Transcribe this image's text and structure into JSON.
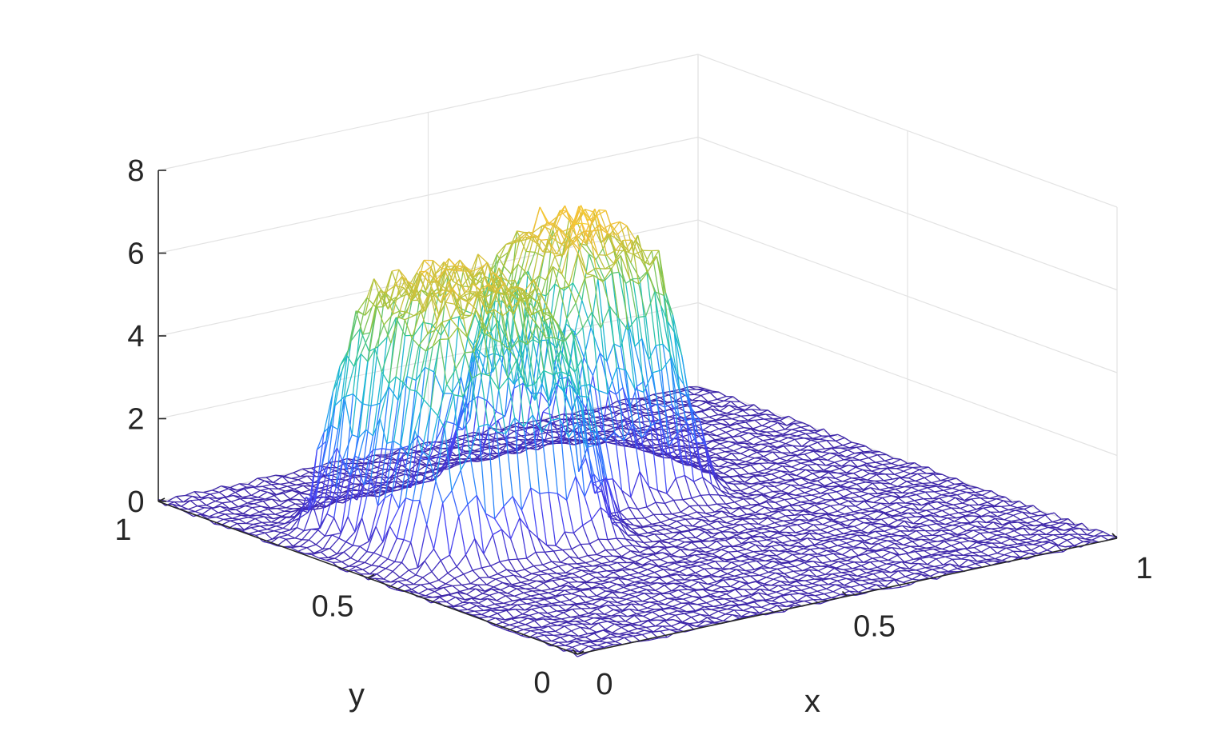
{
  "chart_data": {
    "type": "surface-mesh",
    "title": "",
    "xlabel": "x",
    "ylabel": "y",
    "zlabel": "",
    "xlim": [
      0,
      1
    ],
    "ylim": [
      0,
      1
    ],
    "zlim": [
      0,
      8
    ],
    "x_ticks": [
      {
        "value": 0,
        "label": "0"
      },
      {
        "value": 0.5,
        "label": "0.5"
      },
      {
        "value": 1,
        "label": "1"
      }
    ],
    "y_ticks": [
      {
        "value": 0,
        "label": "0"
      },
      {
        "value": 0.5,
        "label": "0.5"
      },
      {
        "value": 1,
        "label": "1"
      }
    ],
    "z_ticks": [
      {
        "value": 0,
        "label": "0"
      },
      {
        "value": 2,
        "label": "2"
      },
      {
        "value": 4,
        "label": "4"
      },
      {
        "value": 6,
        "label": "6"
      },
      {
        "value": 8,
        "label": "8"
      }
    ],
    "grid": true,
    "colormap": [
      "#3e26a8",
      "#4743f6",
      "#2c7eff",
      "#1ab2e2",
      "#2ec6a0",
      "#95c442",
      "#f4c138",
      "#f9fb15"
    ],
    "surface": {
      "description_values": "noisy near-zero background with a raised plateau",
      "background_level": 0,
      "plateau_regions": [
        {
          "x_range": [
            0.1,
            0.4
          ],
          "y_range": [
            0.45,
            0.75
          ],
          "height": 6.0
        },
        {
          "x_range": [
            0.4,
            0.65
          ],
          "y_range": [
            0.55,
            0.8
          ],
          "height": 6.4
        }
      ],
      "peak_max": 7.5
    }
  }
}
